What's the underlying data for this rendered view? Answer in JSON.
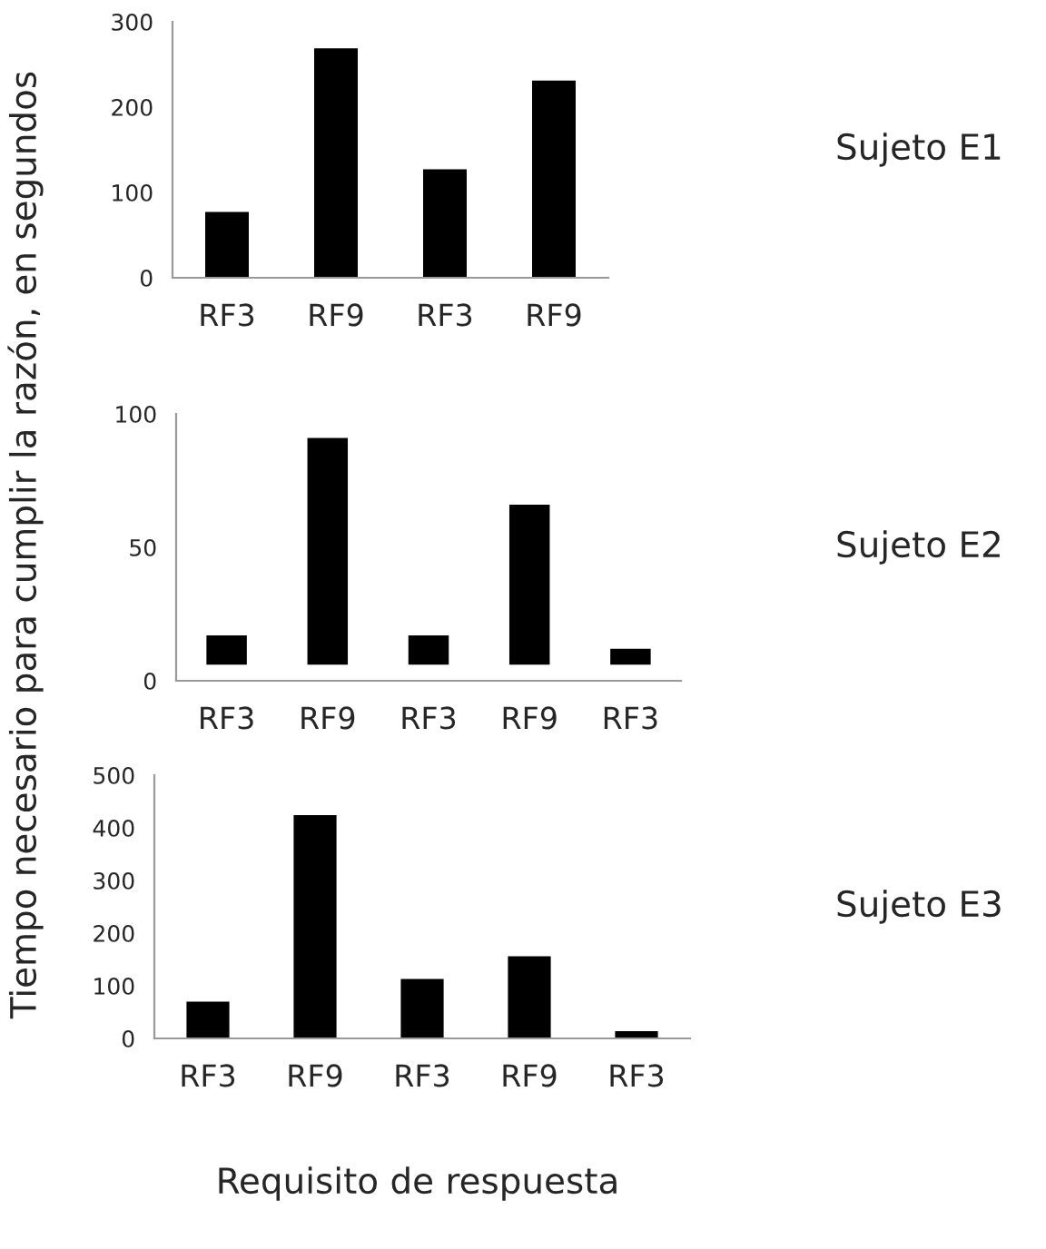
{
  "chart_data": [
    {
      "type": "bar",
      "categories": [
        "RF3",
        "RF9",
        "RF3",
        "RF9"
      ],
      "values": [
        77,
        269,
        127,
        231
      ],
      "color": "#000000",
      "ylim": [
        0,
        300
      ],
      "yticks": [
        0,
        100,
        200,
        300
      ],
      "grid": false,
      "legend": false,
      "annotations": [
        "Sujeto E1"
      ]
    },
    {
      "type": "bar",
      "categories": [
        "RF3",
        "RF9",
        "RF3",
        "RF9",
        "RF3"
      ],
      "values": [
        11,
        85,
        11,
        60,
        6
      ],
      "base": [
        6,
        6,
        6,
        6,
        6
      ],
      "color": "#000000",
      "ylim": [
        0,
        100
      ],
      "yticks": [
        0,
        50,
        100
      ],
      "grid": false,
      "legend": false,
      "ylabel": "Tiempo necesario para cumplir la razón, en segundos",
      "annotations": [
        "Sujeto E2"
      ]
    },
    {
      "type": "bar",
      "categories": [
        "RF3",
        "RF9",
        "RF3",
        "RF9",
        "RF3"
      ],
      "values": [
        70,
        424,
        113,
        156,
        14
      ],
      "color": "#000000",
      "ylim": [
        0,
        500
      ],
      "yticks": [
        0,
        100,
        200,
        300,
        400,
        500
      ],
      "grid": false,
      "legend": false,
      "xlabel": "Requisito de respuesta",
      "annotations": [
        "Sujeto E3"
      ]
    }
  ]
}
